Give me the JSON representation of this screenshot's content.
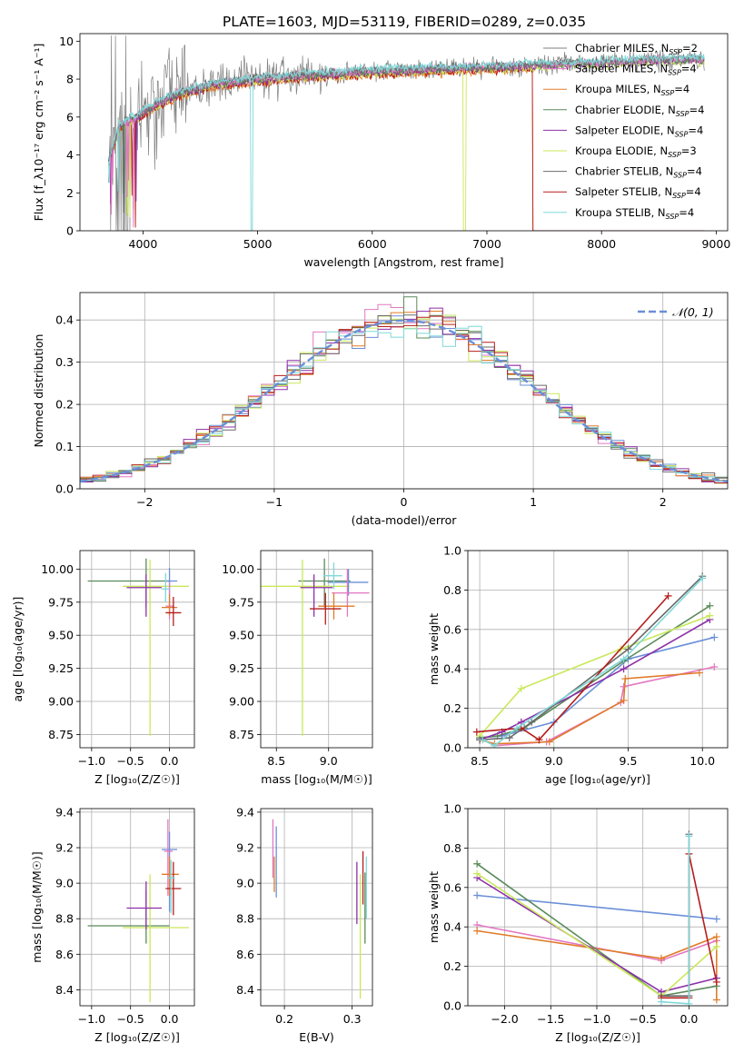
{
  "title": "PLATE=1603, MJD=53119, FIBERID=0289, z=0.035",
  "colors": {
    "cm": "#7f7f7f",
    "sm": "#e377c2",
    "km": "#e07b28",
    "ce": "#5a8a5a",
    "se": "#8c2fa8",
    "ke": "#c9e85a",
    "cs": "#6b6b6b",
    "ss": "#b51c1c",
    "ks": "#7fd8d8",
    "normal": "#6a8fd8"
  },
  "chart_data": [
    {
      "type": "line",
      "name": "spectrum",
      "ylabel": "Flux [f_λ10⁻¹⁷ erg cm⁻² s⁻¹ A⁻¹]",
      "xlabel": "wavelength [Angstrom, rest frame]",
      "xlim": [
        3450,
        9100
      ],
      "ylim": [
        0,
        10.4
      ],
      "xticks": [
        4000,
        5000,
        6000,
        7000,
        8000,
        9000
      ],
      "yticks": [
        0,
        2,
        4,
        6,
        8,
        10
      ],
      "legend_position": "top-right",
      "legend": [
        {
          "key": "cm",
          "label": "Chabrier MILES, N",
          "n": "2"
        },
        {
          "key": "sm",
          "label": "Salpeter MILES, N",
          "n": "4"
        },
        {
          "key": "km",
          "label": "Kroupa MILES, N",
          "n": "4"
        },
        {
          "key": "ce",
          "label": "Chabrier ELODIE, N",
          "n": "4"
        },
        {
          "key": "se",
          "label": "Salpeter ELODIE, N",
          "n": "4"
        },
        {
          "key": "ke",
          "label": "Kroupa ELODIE, N",
          "n": "3"
        },
        {
          "key": "cs",
          "label": "Chabrier STELIB, N",
          "n": "4"
        },
        {
          "key": "ss",
          "label": "Salpeter STELIB, N",
          "n": "4"
        },
        {
          "key": "ks",
          "label": "Kroupa STELIB, N",
          "n": "4"
        }
      ],
      "ssp_sub": "SSP",
      "continuum": {
        "x": [
          3700,
          3800,
          3950,
          4100,
          4300,
          4600,
          5000,
          5500,
          6000,
          6500,
          7000,
          7400,
          7800,
          8200,
          8600,
          8900
        ],
        "y": [
          3.6,
          5.6,
          6.0,
          6.6,
          7.2,
          7.7,
          8.0,
          8.2,
          8.4,
          8.5,
          8.6,
          8.7,
          8.8,
          8.9,
          9.0,
          9.0
        ]
      },
      "observed_x": [
        3700,
        8900
      ]
    },
    {
      "type": "histogram",
      "name": "residuals",
      "xlabel": "(data-model)/error",
      "ylabel": "Normed distribution",
      "xlim": [
        -2.5,
        2.5
      ],
      "ylim": [
        0,
        0.465
      ],
      "xticks": [
        -2,
        -1,
        0,
        1,
        2
      ],
      "yticks": [
        0.0,
        0.1,
        0.2,
        0.3,
        0.4
      ],
      "legend": [
        {
          "key": "normal",
          "label": "𝒩(0, 1)"
        }
      ],
      "legend_position": "top-right",
      "bin_width": 0.1
    },
    {
      "type": "errorbar",
      "name": "age-vs-Z",
      "xlabel": "Z [log₁₀(Z/Z☉)]",
      "ylabel": "age  [log₁₀(age/yr)]",
      "xlim": [
        -1.15,
        0.32
      ],
      "ylim": [
        8.65,
        10.14
      ],
      "xticks": [
        -1.0,
        -0.5,
        0.0
      ],
      "yticks": [
        8.75,
        9.0,
        9.25,
        9.5,
        9.75,
        10.0
      ],
      "points": [
        {
          "key": "ce",
          "x": -0.3,
          "xerr": [
            0.75,
            0.3
          ],
          "y": 9.91,
          "yerr": [
            0.2,
            0.17
          ]
        },
        {
          "key": "ke",
          "x": -0.25,
          "xerr": [
            0.35,
            0.5
          ],
          "y": 9.87,
          "yerr": [
            1.13,
            0.2
          ]
        },
        {
          "key": "se",
          "x": -0.3,
          "xerr": [
            0.25,
            0.2
          ],
          "y": 9.86,
          "yerr": [
            0.22,
            0.1
          ]
        },
        {
          "key": "normal",
          "x": 0.0,
          "xerr": [
            0.05,
            0.1
          ],
          "y": 9.91,
          "yerr": [
            0.1,
            0.1
          ]
        },
        {
          "key": "sm",
          "x": 0.0,
          "xerr": [
            0.05,
            0.06
          ],
          "y": 9.72,
          "yerr": [
            0.1,
            0.18
          ]
        },
        {
          "key": "km",
          "x": 0.0,
          "xerr": [
            0.1,
            0.1
          ],
          "y": 9.71,
          "yerr": [
            0.06,
            0.1
          ]
        },
        {
          "key": "ss",
          "x": 0.05,
          "xerr": [
            0.1,
            0.1
          ],
          "y": 9.67,
          "yerr": [
            0.1,
            0.12
          ]
        },
        {
          "key": "ks",
          "x": -0.05,
          "xerr": [
            0.05,
            0.05
          ],
          "y": 9.85,
          "yerr": [
            0.1,
            0.12
          ]
        }
      ]
    },
    {
      "type": "errorbar",
      "name": "age-vs-mass",
      "xlabel": "mass [log₁₀(M/M☉)]",
      "ylabel": "",
      "xlim": [
        8.35,
        9.42
      ],
      "ylim": [
        8.65,
        10.14
      ],
      "xticks": [
        8.5,
        9.0
      ],
      "yticks": [
        8.75,
        9.0,
        9.25,
        9.5,
        9.75,
        10.0
      ],
      "points": [
        {
          "key": "ce",
          "x": 8.96,
          "xerr": [
            0.25,
            0.25
          ],
          "y": 9.91,
          "yerr": [
            0.2,
            0.17
          ]
        },
        {
          "key": "ke",
          "x": 8.75,
          "xerr": [
            0.4,
            0.45
          ],
          "y": 9.87,
          "yerr": [
            1.13,
            0.2
          ]
        },
        {
          "key": "se",
          "x": 8.86,
          "xerr": [
            0.13,
            0.18
          ],
          "y": 9.86,
          "yerr": [
            0.22,
            0.1
          ]
        },
        {
          "key": "normal",
          "x": 9.19,
          "xerr": [
            0.2,
            0.19
          ],
          "y": 9.9,
          "yerr": [
            0.1,
            0.1
          ]
        },
        {
          "key": "sm",
          "x": 9.18,
          "xerr": [
            0.15,
            0.21
          ],
          "y": 9.82,
          "yerr": [
            0.18,
            0.18
          ]
        },
        {
          "key": "km",
          "x": 9.05,
          "xerr": [
            0.15,
            0.2
          ],
          "y": 9.72,
          "yerr": [
            0.1,
            0.1
          ]
        },
        {
          "key": "ss",
          "x": 8.97,
          "xerr": [
            0.15,
            0.15
          ],
          "y": 9.7,
          "yerr": [
            0.12,
            0.12
          ]
        },
        {
          "key": "ks",
          "x": 9.05,
          "xerr": [
            0.1,
            0.08
          ],
          "y": 9.95,
          "yerr": [
            0.1,
            0.1
          ]
        }
      ]
    },
    {
      "type": "line",
      "name": "mass-weight-vs-age",
      "xlabel": "age  [log₁₀(age/yr)]",
      "ylabel": "mass weight",
      "xlim": [
        8.42,
        10.17
      ],
      "ylim": [
        0,
        1.0
      ],
      "xticks": [
        8.5,
        9.0,
        9.5,
        10.0
      ],
      "yticks": [
        0.0,
        0.2,
        0.4,
        0.6,
        0.8,
        1.0
      ],
      "series": [
        {
          "key": "normal",
          "x": [
            8.5,
            8.65,
            9.0,
            9.5,
            10.08
          ],
          "y": [
            0.05,
            0.06,
            0.13,
            0.45,
            0.56
          ]
        },
        {
          "key": "sm",
          "x": [
            8.5,
            8.6,
            8.95,
            9.45,
            9.47,
            10.08
          ],
          "y": [
            0.05,
            0.01,
            0.03,
            0.23,
            0.31,
            0.41
          ]
        },
        {
          "key": "km",
          "x": [
            8.5,
            8.6,
            8.97,
            9.47,
            9.48,
            9.98
          ],
          "y": [
            0.04,
            0.02,
            0.03,
            0.24,
            0.35,
            0.38
          ]
        },
        {
          "key": "ce",
          "x": [
            8.5,
            8.62,
            8.8,
            9.47,
            10.05
          ],
          "y": [
            0.05,
            0.06,
            0.1,
            0.44,
            0.72
          ]
        },
        {
          "key": "se",
          "x": [
            8.5,
            8.65,
            8.78,
            9.47,
            10.05
          ],
          "y": [
            0.04,
            0.08,
            0.13,
            0.4,
            0.65
          ]
        },
        {
          "key": "ke",
          "x": [
            8.5,
            8.78,
            9.45,
            10.05
          ],
          "y": [
            0.06,
            0.3,
            0.5,
            0.67
          ]
        },
        {
          "key": "cs",
          "x": [
            8.5,
            8.7,
            8.85,
            9.5,
            10.0
          ],
          "y": [
            0.04,
            0.05,
            0.13,
            0.5,
            0.87
          ]
        },
        {
          "key": "ss",
          "x": [
            8.48,
            8.78,
            8.9,
            9.77
          ],
          "y": [
            0.08,
            0.1,
            0.04,
            0.77
          ]
        },
        {
          "key": "ks",
          "x": [
            8.52,
            8.6,
            8.75,
            9.47,
            10.0
          ],
          "y": [
            0.04,
            0.01,
            0.1,
            0.45,
            0.86
          ]
        }
      ]
    },
    {
      "type": "errorbar",
      "name": "mass-vs-Z",
      "xlabel": "Z [log₁₀(Z/Z☉)]",
      "ylabel": "mass [log₁₀(M/M☉)]",
      "xlim": [
        -1.15,
        0.32
      ],
      "ylim": [
        8.31,
        9.42
      ],
      "xticks": [
        -1.0,
        -0.5,
        0.0
      ],
      "yticks": [
        8.4,
        8.6,
        8.8,
        9.0,
        9.2,
        9.4
      ],
      "points": [
        {
          "key": "ce",
          "x": -0.3,
          "xerr": [
            0.75,
            0.3
          ],
          "y": 8.76,
          "yerr": [
            0.1,
            0.2
          ]
        },
        {
          "key": "ke",
          "x": -0.25,
          "xerr": [
            0.35,
            0.5
          ],
          "y": 8.75,
          "yerr": [
            0.42,
            0.3
          ]
        },
        {
          "key": "se",
          "x": -0.3,
          "xerr": [
            0.25,
            0.2
          ],
          "y": 8.86,
          "yerr": [
            0.12,
            0.15
          ]
        },
        {
          "key": "normal",
          "x": 0.0,
          "xerr": [
            0.1,
            0.1
          ],
          "y": 9.19,
          "yerr": [
            0.35,
            0.1
          ]
        },
        {
          "key": "sm",
          "x": -0.02,
          "xerr": [
            0.05,
            0.06
          ],
          "y": 9.18,
          "yerr": [
            0.25,
            0.18
          ]
        },
        {
          "key": "km",
          "x": 0.0,
          "xerr": [
            0.1,
            0.12
          ],
          "y": 9.05,
          "yerr": [
            0.12,
            0.1
          ]
        },
        {
          "key": "ss",
          "x": 0.05,
          "xerr": [
            0.1,
            0.1
          ],
          "y": 8.97,
          "yerr": [
            0.15,
            0.15
          ]
        },
        {
          "key": "ks",
          "x": 0.02,
          "xerr": [
            0.05,
            0.05
          ],
          "y": 9.03,
          "yerr": [
            0.2,
            0.1
          ]
        }
      ]
    },
    {
      "type": "errorbar",
      "name": "mass-vs-EBV",
      "xlabel": "E(B-V)",
      "ylabel": "",
      "xlim": [
        0.165,
        0.33
      ],
      "ylim": [
        8.31,
        9.42
      ],
      "xticks": [
        0.2,
        0.3
      ],
      "yticks": [
        8.4,
        8.6,
        8.8,
        9.0,
        9.2,
        9.4
      ],
      "points": [
        {
          "key": "sm",
          "x": 0.183,
          "xerr": [
            0,
            0
          ],
          "y": 9.18,
          "yerr": [
            0.15,
            0.18
          ]
        },
        {
          "key": "km",
          "x": 0.185,
          "xerr": [
            0,
            0
          ],
          "y": 9.05,
          "yerr": [
            0.1,
            0.1
          ]
        },
        {
          "key": "normal",
          "x": 0.188,
          "xerr": [
            0,
            0
          ],
          "y": 9.17,
          "yerr": [
            0.25,
            0.15
          ]
        },
        {
          "key": "se",
          "x": 0.307,
          "xerr": [
            0,
            0
          ],
          "y": 8.95,
          "yerr": [
            0.18,
            0.17
          ]
        },
        {
          "key": "ke",
          "x": 0.312,
          "xerr": [
            0,
            0
          ],
          "y": 8.75,
          "yerr": [
            0.4,
            0.3
          ]
        },
        {
          "key": "ss",
          "x": 0.316,
          "xerr": [
            0,
            0
          ],
          "y": 9.0,
          "yerr": [
            0.12,
            0.18
          ]
        },
        {
          "key": "ce",
          "x": 0.319,
          "xerr": [
            0,
            0
          ],
          "y": 8.86,
          "yerr": [
            0.2,
            0.2
          ]
        },
        {
          "key": "ks",
          "x": 0.321,
          "xerr": [
            0,
            0
          ],
          "y": 9.0,
          "yerr": [
            0.2,
            0.15
          ]
        }
      ]
    },
    {
      "type": "line",
      "name": "mass-weight-vs-Z",
      "xlabel": "Z [log₁₀(Z/Z☉)]",
      "ylabel": "mass weight",
      "xlim": [
        -2.4,
        0.42
      ],
      "ylim": [
        0,
        1.0
      ],
      "xticks": [
        -2.0,
        -1.5,
        -1.0,
        -0.5,
        0.0
      ],
      "yticks": [
        0.0,
        0.2,
        0.4,
        0.6,
        0.8,
        1.0
      ],
      "series": [
        {
          "key": "normal",
          "x": [
            -2.3,
            0.3
          ],
          "y": [
            0.56,
            0.44
          ]
        },
        {
          "key": "sm",
          "x": [
            -2.3,
            -0.3,
            0.3
          ],
          "y": [
            0.41,
            0.23,
            0.33
          ]
        },
        {
          "key": "km",
          "x": [
            -2.3,
            -0.3,
            0.3,
            0.3
          ],
          "y": [
            0.38,
            0.24,
            0.35,
            0.03
          ]
        },
        {
          "key": "ce",
          "x": [
            -2.3,
            -0.3,
            0.3
          ],
          "y": [
            0.72,
            0.05,
            0.1
          ]
        },
        {
          "key": "se",
          "x": [
            -2.3,
            -0.3,
            0.3
          ],
          "y": [
            0.65,
            0.07,
            0.14
          ]
        },
        {
          "key": "ke",
          "x": [
            -2.3,
            -0.3,
            0.3
          ],
          "y": [
            0.67,
            0.05,
            0.3
          ]
        },
        {
          "key": "cs",
          "x": [
            -0.3,
            0.0,
            0.0
          ],
          "y": [
            0.05,
            0.05,
            0.87
          ]
        },
        {
          "key": "ss",
          "x": [
            -0.3,
            0.0,
            0.0,
            0.3
          ],
          "y": [
            0.04,
            0.04,
            0.77,
            0.12
          ]
        },
        {
          "key": "ks",
          "x": [
            -0.3,
            0.0,
            0.0
          ],
          "y": [
            0.02,
            0.01,
            0.86
          ]
        }
      ]
    }
  ]
}
